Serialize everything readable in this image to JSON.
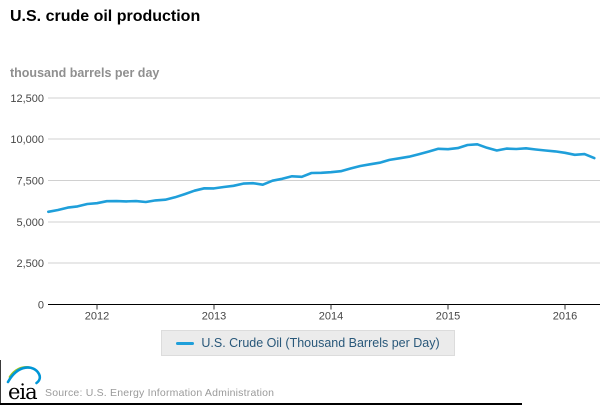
{
  "header": {
    "title": "U.S. crude oil production",
    "subtitle": "thousand barrels per day"
  },
  "legend": {
    "label": "U.S. Crude Oil (Thousand Barrels per Day)"
  },
  "footer": {
    "logo_text": "eia",
    "source": "Source: U.S. Energy Information Administration"
  },
  "colors": {
    "line": "#1f9fda",
    "legend_text": "#29587a",
    "gridline": "#d0d0d0",
    "axis_line": "#000000",
    "axis_label": "#474747",
    "logo_green": "#9dc41d",
    "logo_blue": "#0096d7"
  },
  "chart_data": {
    "type": "line",
    "title": "U.S. crude oil production",
    "ylabel": "thousand barrels per day",
    "xlabel": "",
    "grid": "horizontal",
    "legend_position": "bottom",
    "ylim": [
      0,
      12500
    ],
    "y_tick_labels": [
      "0",
      "2,500",
      "5,000",
      "7,500",
      "10,000",
      "12,500"
    ],
    "x_tick_labels": [
      "2012",
      "2013",
      "2014",
      "2015",
      "2016"
    ],
    "frequency": "monthly",
    "x_start": "2011-08",
    "x_end": "2016-04",
    "series": [
      {
        "name": "U.S. Crude Oil (Thousand Barrels per Day)",
        "values": [
          5608,
          5712,
          5857,
          5935,
          6075,
          6126,
          6245,
          6252,
          6236,
          6255,
          6201,
          6296,
          6337,
          6484,
          6675,
          6880,
          7030,
          7021,
          7107,
          7177,
          7311,
          7334,
          7246,
          7486,
          7600,
          7757,
          7724,
          7955,
          7966,
          8005,
          8064,
          8225,
          8379,
          8481,
          8575,
          8749,
          8842,
          8940,
          9093,
          9250,
          9420,
          9397,
          9461,
          9648,
          9694,
          9478,
          9315,
          9433,
          9407,
          9452,
          9378,
          9318,
          9262,
          9179,
          9058,
          9097,
          8855
        ]
      }
    ]
  }
}
